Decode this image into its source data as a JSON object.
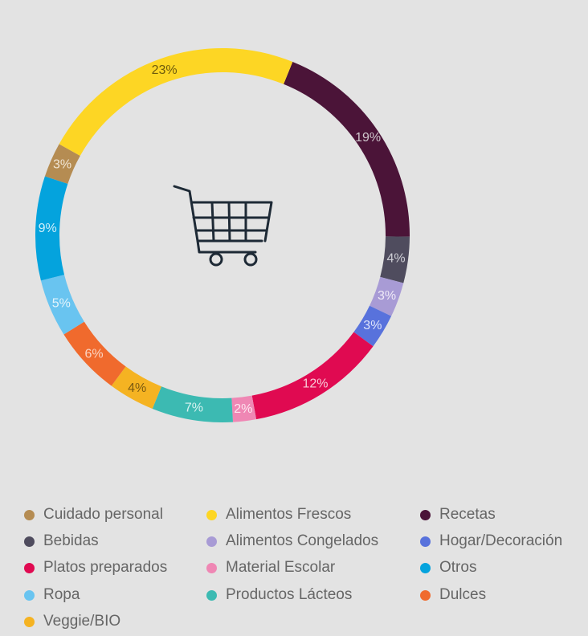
{
  "chart_data": {
    "type": "donut",
    "center_icon": "shopping-cart-icon",
    "slices": [
      {
        "name": "Recetas",
        "value": 19,
        "label": "19%",
        "color": "#4b1438",
        "label_color": "#cfc6cc"
      },
      {
        "name": "Bebidas",
        "value": 4,
        "label": "4%",
        "color": "#4f4c5e",
        "label_color": "#cfcfd6"
      },
      {
        "name": "Alimentos Congelados",
        "value": 3,
        "label": "3%",
        "color": "#a89bd5",
        "label_color": "#efeaf7"
      },
      {
        "name": "Hogar/Decoración",
        "value": 3,
        "label": "3%",
        "color": "#5872dc",
        "label_color": "#dfe5fb"
      },
      {
        "name": "Platos preparados",
        "value": 12,
        "label": "12%",
        "color": "#e00a51",
        "label_color": "#f8c9d7"
      },
      {
        "name": "Material Escolar",
        "value": 2,
        "label": "2%",
        "color": "#ef87b4",
        "label_color": "#fde6f0"
      },
      {
        "name": "Productos Lácteos",
        "value": 7,
        "label": "7%",
        "color": "#3cbab2",
        "label_color": "#d8f3f1"
      },
      {
        "name": "Veggie/BIO",
        "value": 4,
        "label": "4%",
        "color": "#f5b322",
        "label_color": "#7a5a12"
      },
      {
        "name": "Dulces",
        "value": 6,
        "label": "6%",
        "color": "#f06a2d",
        "label_color": "#fbd3c1"
      },
      {
        "name": "Ropa",
        "value": 5,
        "label": "5%",
        "color": "#69c4f0",
        "label_color": "#e3f4fc"
      },
      {
        "name": "Otros",
        "value": 9,
        "label": "9%",
        "color": "#04a3dd",
        "label_color": "#cfeefa"
      },
      {
        "name": "Cuidado personal",
        "value": 3,
        "label": "3%",
        "color": "#b58c52",
        "label_color": "#f1e6d5"
      },
      {
        "name": "Alimentos Frescos",
        "value": 23,
        "label": "23%",
        "color": "#fdd624",
        "label_color": "#6d5a0d"
      }
    ],
    "start_angle_deg": -68,
    "legend": [
      {
        "name": "Cuidado personal",
        "color": "#b58c52"
      },
      {
        "name": "Alimentos Frescos",
        "color": "#fdd624"
      },
      {
        "name": "Recetas",
        "color": "#4b1438"
      },
      {
        "name": "Bebidas",
        "color": "#4f4c5e"
      },
      {
        "name": "Alimentos Congelados",
        "color": "#a89bd5"
      },
      {
        "name": "Hogar/Decoración",
        "color": "#5872dc"
      },
      {
        "name": "Platos preparados",
        "color": "#e00a51"
      },
      {
        "name": "Material Escolar",
        "color": "#ef87b4"
      },
      {
        "name": "Otros",
        "color": "#04a3dd"
      },
      {
        "name": "Ropa",
        "color": "#69c4f0"
      },
      {
        "name": "Productos Lácteos",
        "color": "#3cbab2"
      },
      {
        "name": "Dulces",
        "color": "#f06a2d"
      },
      {
        "name": "Veggie/BIO",
        "color": "#f5b322"
      }
    ],
    "legend_placement": "bottom"
  }
}
